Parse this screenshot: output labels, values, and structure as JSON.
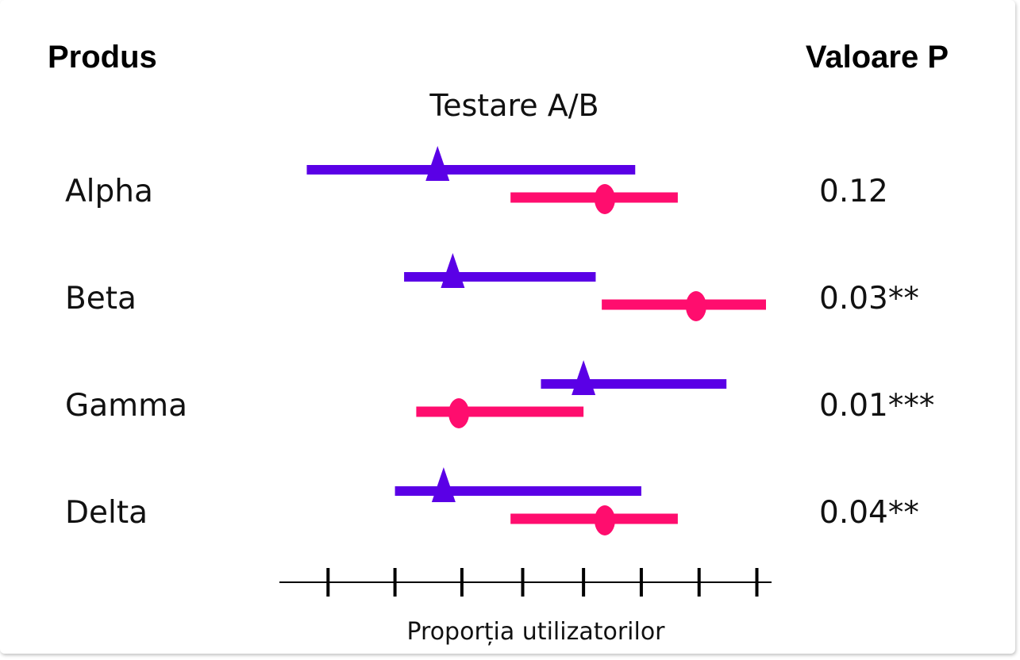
{
  "chart_data": {
    "type": "forest",
    "title": "Testare A/B",
    "left_header": "Produs",
    "right_header": "Valoare P",
    "xlabel": "Proporția utilizatorilor",
    "xlim": [
      0,
      8
    ],
    "ticks": [
      0.8,
      1.9,
      3.0,
      4.0,
      5.0,
      5.95,
      6.9,
      7.85
    ],
    "colors": {
      "group_a": "#5a00e6",
      "group_b": "#ff0d6e"
    },
    "rows": [
      {
        "label": "Alpha",
        "p_value": "0.12",
        "group_a": {
          "low": 0.45,
          "point": 2.6,
          "high": 5.85
        },
        "group_b": {
          "low": 3.8,
          "point": 5.35,
          "high": 6.55
        }
      },
      {
        "label": "Beta",
        "p_value": "0.03**",
        "group_a": {
          "low": 2.05,
          "point": 2.85,
          "high": 5.2
        },
        "group_b": {
          "low": 5.3,
          "point": 6.85,
          "high": 8.0
        }
      },
      {
        "label": "Gamma",
        "p_value": "0.01***",
        "group_a": {
          "low": 4.3,
          "point": 5.0,
          "high": 7.35
        },
        "group_b": {
          "low": 2.25,
          "point": 2.95,
          "high": 5.0
        }
      },
      {
        "label": "Delta",
        "p_value": "0.04**",
        "group_a": {
          "low": 1.9,
          "point": 2.7,
          "high": 5.95
        },
        "group_b": {
          "low": 3.8,
          "point": 5.35,
          "high": 6.55
        }
      }
    ]
  }
}
